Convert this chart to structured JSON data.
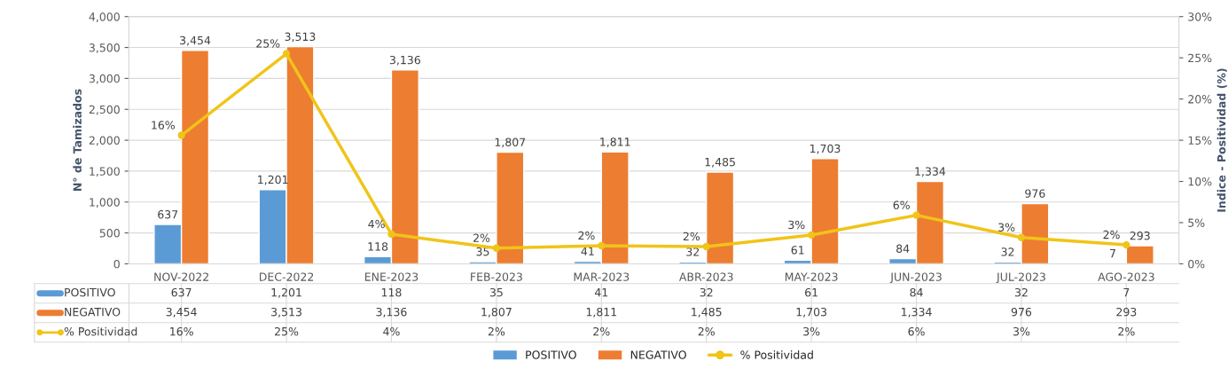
{
  "chart_data": {
    "type": "bar",
    "ylabel": "N° de Tamizados",
    "y2label": "Indice - Positividad (%)",
    "categories": [
      "NOV-2022",
      "DEC-2022",
      "ENE-2023",
      "FEB-2023",
      "MAR-2023",
      "ABR-2023",
      "MAY-2023",
      "JUN-2023",
      "JUL-2023",
      "AGO-2023"
    ],
    "series": [
      {
        "name": "POSITIVO",
        "color": "#5b9bd5",
        "values": [
          637,
          1201,
          118,
          35,
          41,
          32,
          61,
          84,
          32,
          7
        ],
        "value_labels": [
          "637",
          "1,201",
          "118",
          "35",
          "41",
          "32",
          "61",
          "84",
          "32",
          "7"
        ]
      },
      {
        "name": "NEGATIVO",
        "color": "#ed7d31",
        "values": [
          3454,
          3513,
          3136,
          1807,
          1811,
          1485,
          1703,
          1334,
          976,
          293
        ],
        "value_labels": [
          "3,454",
          "3,513",
          "3,136",
          "1,807",
          "1,811",
          "1,485",
          "1,703",
          "1,334",
          "976",
          "293"
        ]
      },
      {
        "name": "% Positividad",
        "type": "line",
        "axis": "y2",
        "color": "#f0c419",
        "marker": "circle",
        "line_style": "solid",
        "values": [
          15.6,
          25.5,
          3.6,
          1.9,
          2.2,
          2.1,
          3.5,
          5.9,
          3.2,
          2.3
        ],
        "value_labels": [
          "16%",
          "25%",
          "4%",
          "2%",
          "2%",
          "2%",
          "3%",
          "6%",
          "3%",
          "2%"
        ]
      }
    ],
    "ylim": [
      0,
      4000
    ],
    "yticks": [
      {
        "value": 0,
        "label": "0"
      },
      {
        "value": 500,
        "label": "500"
      },
      {
        "value": 1000,
        "label": "1,000"
      },
      {
        "value": 1500,
        "label": "1,500"
      },
      {
        "value": 2000,
        "label": "2,000"
      },
      {
        "value": 2500,
        "label": "2,500"
      },
      {
        "value": 3000,
        "label": "3,000"
      },
      {
        "value": 3500,
        "label": "3,500"
      },
      {
        "value": 4000,
        "label": "4,000"
      }
    ],
    "y2lim": [
      0,
      30
    ],
    "y2ticks": [
      {
        "value": 0,
        "label": "0%"
      },
      {
        "value": 5,
        "label": "5%"
      },
      {
        "value": 10,
        "label": "10%"
      },
      {
        "value": 15,
        "label": "15%"
      },
      {
        "value": 20,
        "label": "20%"
      },
      {
        "value": 25,
        "label": "25%"
      },
      {
        "value": 30,
        "label": "30%"
      }
    ],
    "grid": "y",
    "legend": "bottom"
  }
}
